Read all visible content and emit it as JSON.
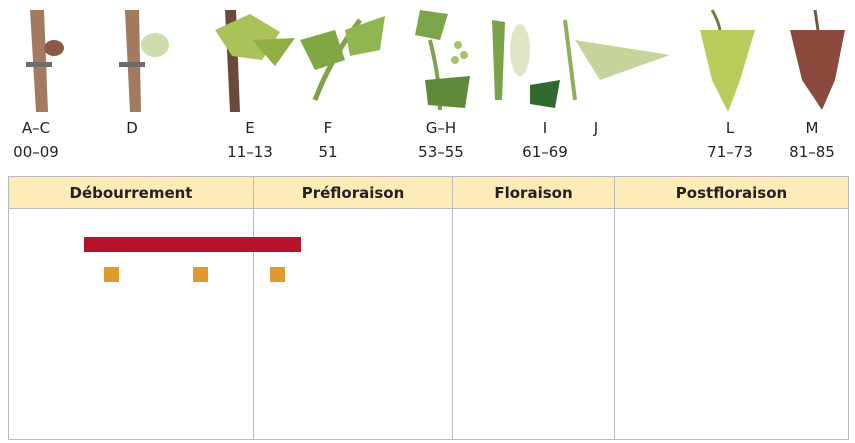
{
  "stages": [
    {
      "letter": "A–C",
      "code": "00–09"
    },
    {
      "letter": "D"
    },
    {
      "letter": "E",
      "code": "11–13"
    },
    {
      "letter": "F",
      "code": "51"
    },
    {
      "letter": "G–H",
      "code": "53–55"
    },
    {
      "letter": "I",
      "code": "61–69"
    },
    {
      "letter": "J"
    },
    {
      "letter": "L",
      "code": "71–73"
    },
    {
      "letter": "M",
      "code": "81–85"
    }
  ],
  "table": {
    "headers": [
      "Débourrement",
      "Préfloraison",
      "Floraison",
      "Postfloraison"
    ]
  }
}
